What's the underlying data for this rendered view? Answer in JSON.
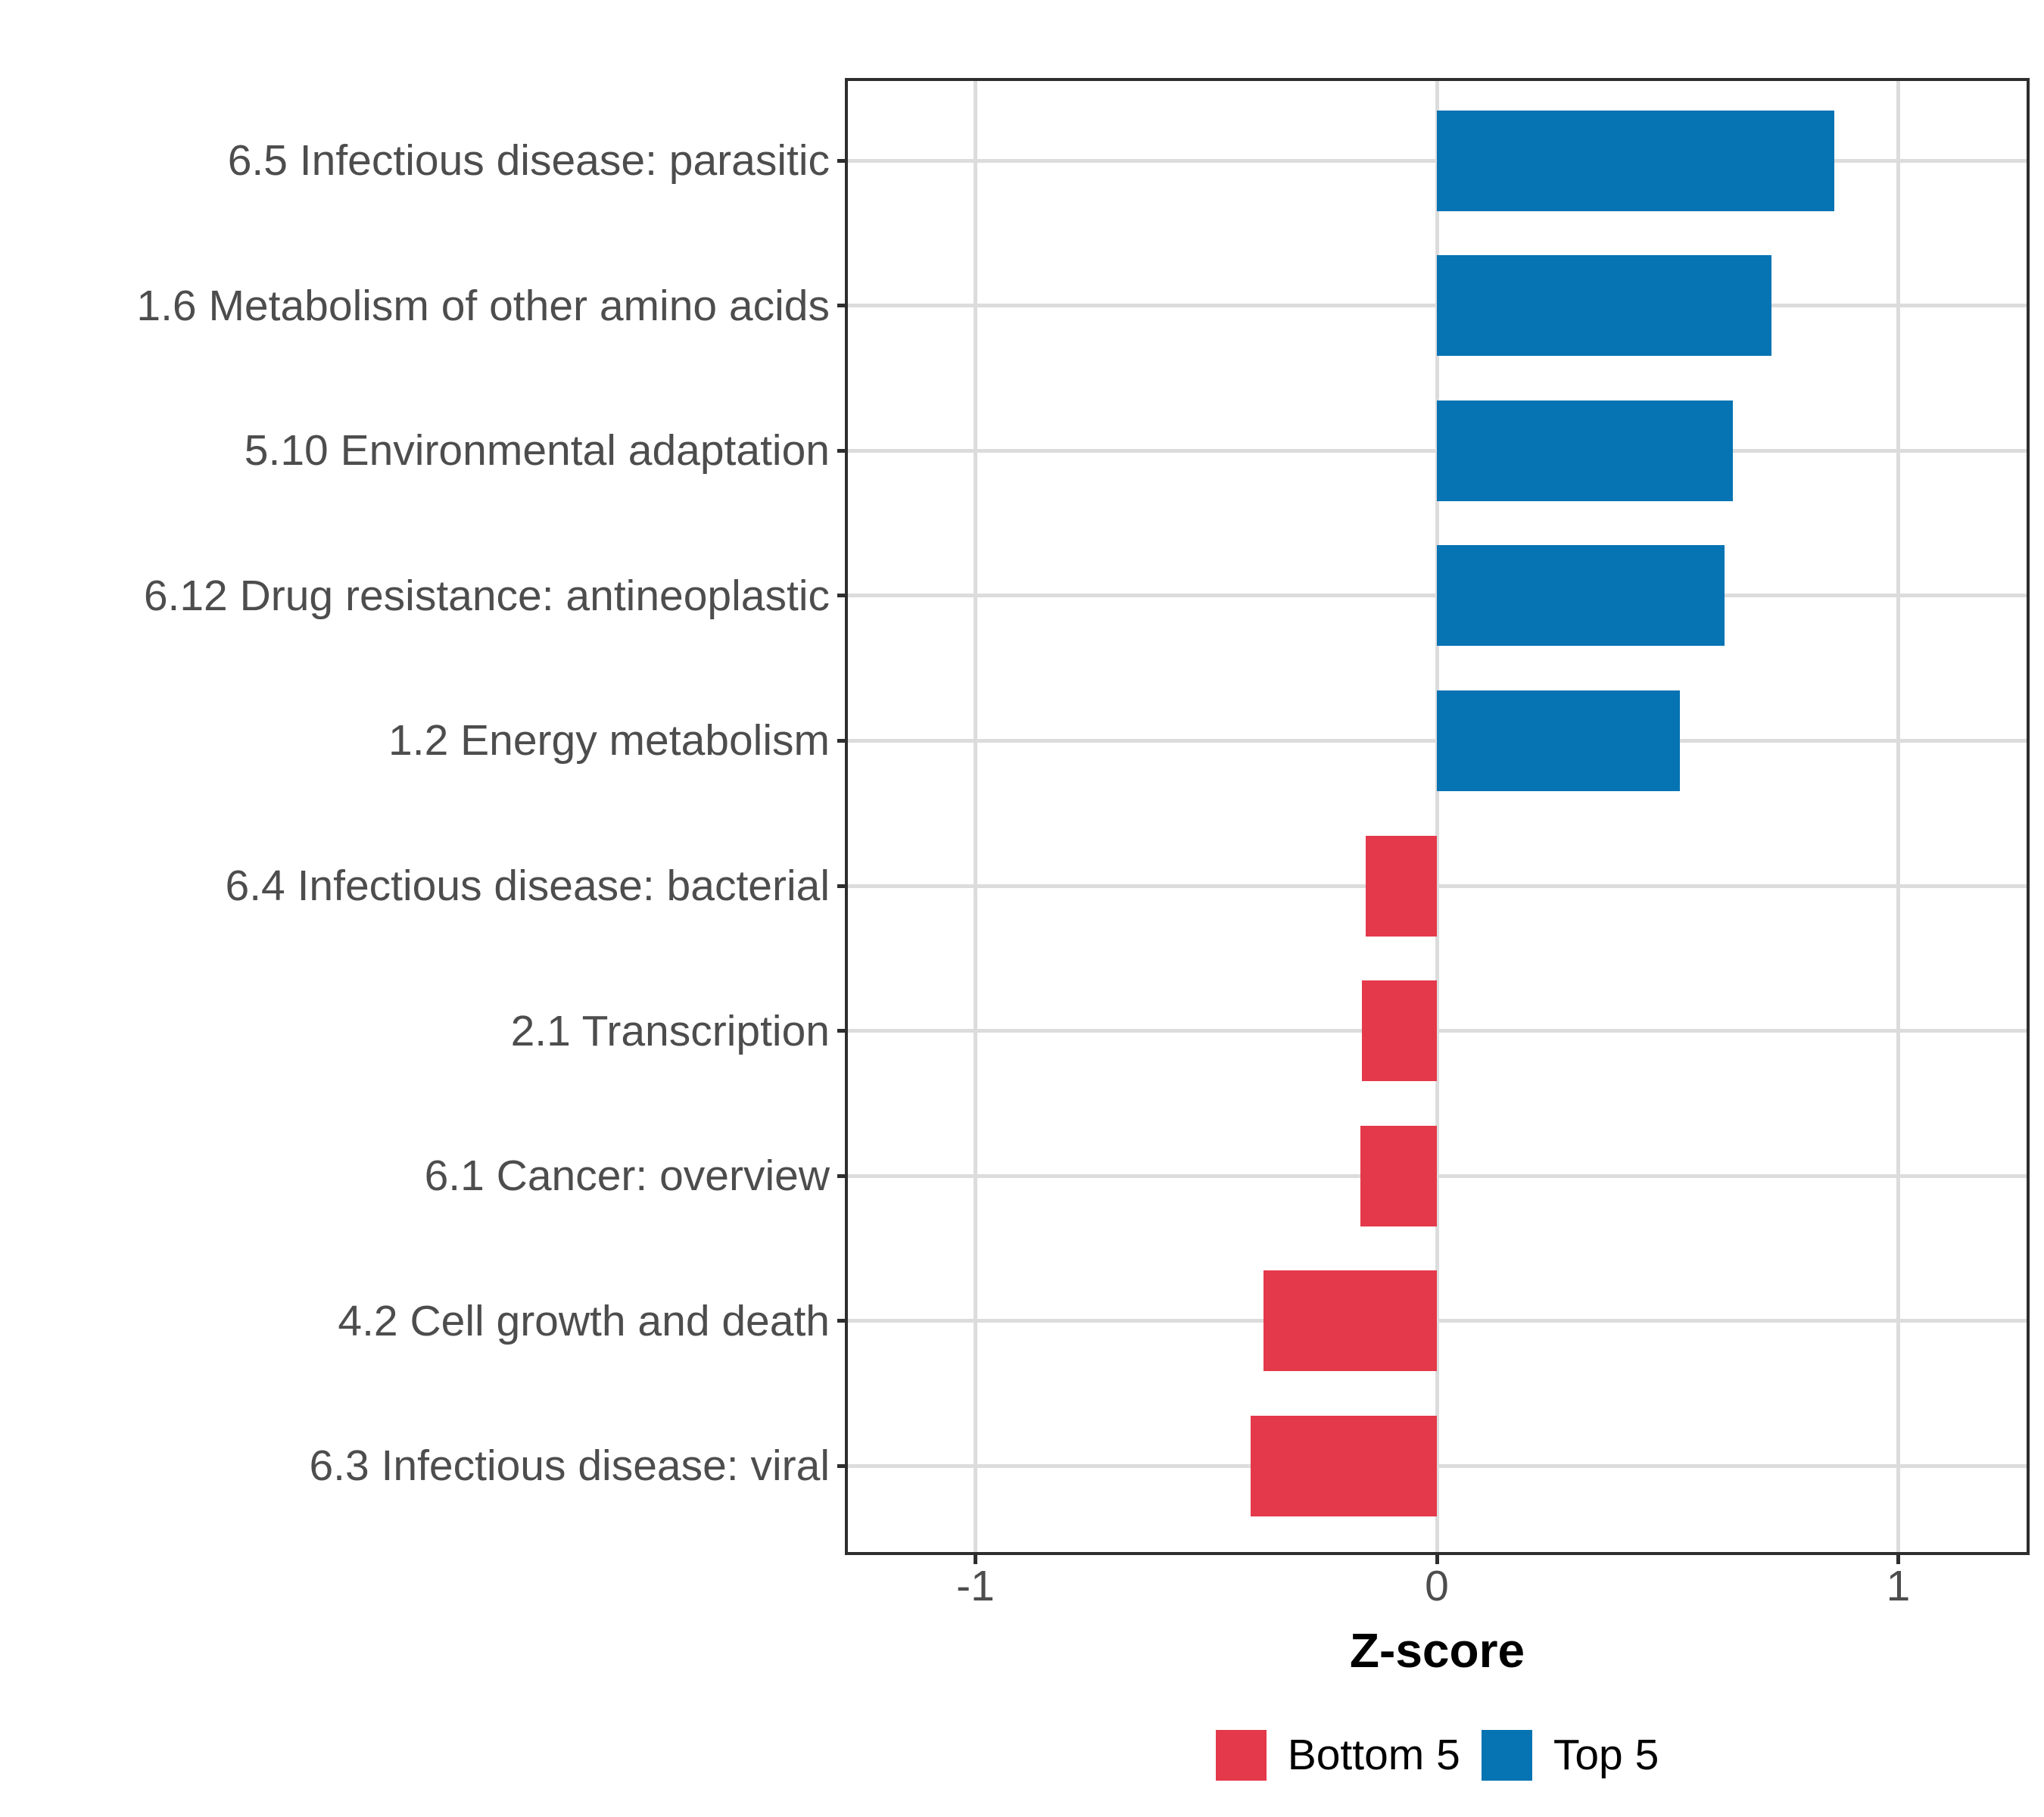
{
  "chart_data": {
    "type": "bar",
    "orientation": "horizontal",
    "title": "",
    "xlabel": "Z-score",
    "ylabel": "",
    "xlim": [
      -1.28,
      1.28
    ],
    "x_ticks": [
      -1,
      0,
      1
    ],
    "x_tick_labels": [
      "-1",
      "0",
      "1"
    ],
    "grid": true,
    "legend_position": "bottom",
    "categories": [
      "6.5 Infectious disease: parasitic",
      "1.6 Metabolism of other amino acids",
      "5.10 Environmental adaptation",
      "6.12 Drug resistance: antineoplastic",
      "1.2 Energy metabolism",
      "6.4 Infectious disease: bacterial",
      "2.1 Transcription",
      "6.1 Cancer: overview",
      "4.2 Cell growth and death",
      "6.3 Infectious disease: viral"
    ],
    "values": [
      0.861,
      0.726,
      0.641,
      0.623,
      0.527,
      -0.155,
      -0.163,
      -0.166,
      -0.376,
      -0.404
    ],
    "groups": [
      "Top 5",
      "Top 5",
      "Top 5",
      "Top 5",
      "Top 5",
      "Bottom 5",
      "Bottom 5",
      "Bottom 5",
      "Bottom 5",
      "Bottom 5"
    ],
    "legend": [
      {
        "label": "Bottom 5",
        "color": "#E4394A"
      },
      {
        "label": "Top 5",
        "color": "#0673B3"
      }
    ],
    "colors": {
      "bottom5": "#E4394A",
      "top5": "#0673B3",
      "gridline": "#dcdcdc",
      "axis_text": "#4d4d4d",
      "panel_border": "#2e2e2e"
    }
  }
}
